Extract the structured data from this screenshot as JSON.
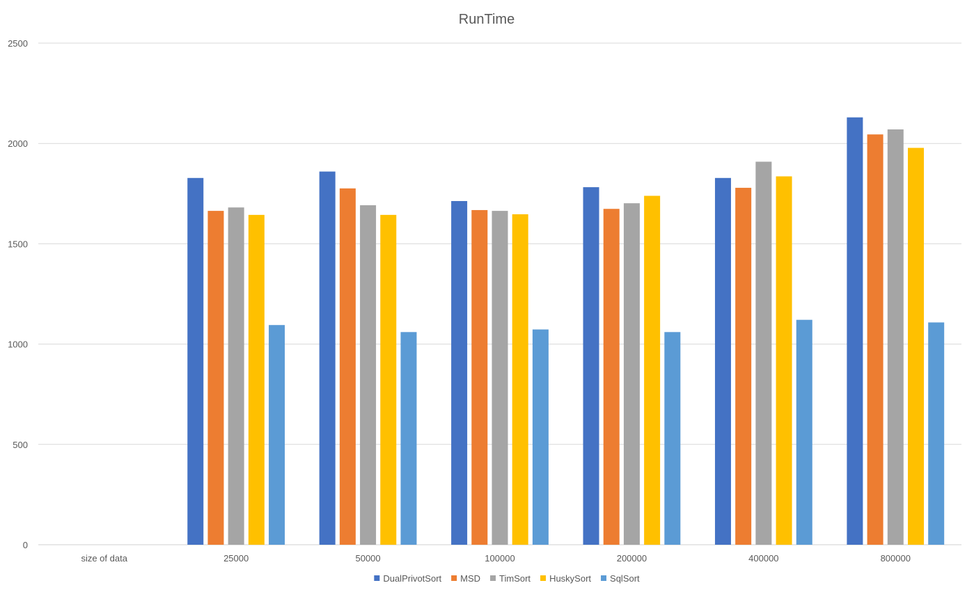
{
  "chart_data": {
    "type": "bar",
    "title": "RunTime",
    "xlabel": "",
    "ylabel": "",
    "categories": [
      "size of data",
      "25000",
      "50000",
      "100000",
      "200000",
      "400000",
      "800000"
    ],
    "ylim": [
      0,
      2500
    ],
    "yticks": [
      0,
      500,
      1000,
      1500,
      2000,
      2500
    ],
    "grid": true,
    "legend_position": "bottom",
    "series": [
      {
        "name": "DualPrivotSort",
        "color": "#4472C4",
        "values": [
          null,
          1828,
          1860,
          1713,
          1782,
          1828,
          2130
        ]
      },
      {
        "name": "MSD",
        "color": "#ED7D31",
        "values": [
          null,
          1664,
          1776,
          1668,
          1674,
          1779,
          2045
        ]
      },
      {
        "name": "TimSort",
        "color": "#A5A5A5",
        "values": [
          null,
          1681,
          1692,
          1664,
          1702,
          1909,
          2070
        ]
      },
      {
        "name": "HuskySort",
        "color": "#FFC000",
        "values": [
          null,
          1644,
          1644,
          1647,
          1739,
          1836,
          1978
        ]
      },
      {
        "name": "SqlSort",
        "color": "#5B9BD5",
        "values": [
          null,
          1095,
          1060,
          1073,
          1060,
          1121,
          1108
        ]
      }
    ]
  }
}
